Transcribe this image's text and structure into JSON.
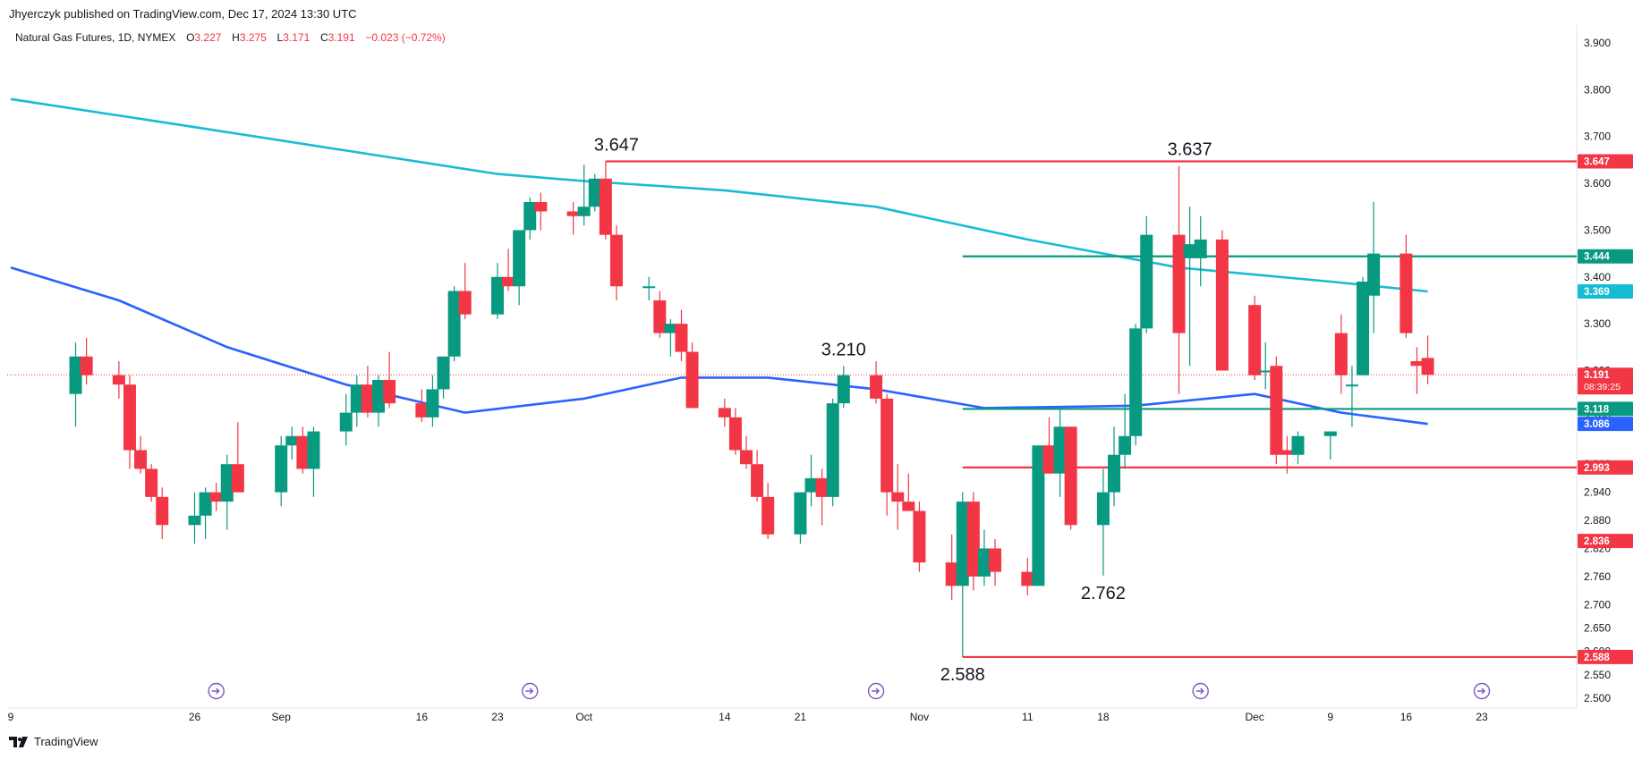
{
  "header": {
    "attribution": "Jhyerczyk published on TradingView.com, Dec 17, 2024 13:30 UTC",
    "symbol": "Natural Gas Futures, 1D, NYMEX",
    "ohlc": {
      "o_label": "O",
      "o_value": "3.227",
      "h_label": "H",
      "h_value": "3.275",
      "l_label": "L",
      "l_value": "3.171",
      "c_label": "C",
      "c_value": "3.191",
      "change": "−0.023 (−0.72%)"
    }
  },
  "footer": {
    "brand": "TradingView"
  },
  "colors": {
    "up": "#089981",
    "down": "#f23645",
    "ma_long": "#17bcd3",
    "ma_short": "#2962ff",
    "support": "#089981",
    "resistance": "#f23645",
    "price_line": "#f23645",
    "event_icon": "#7e57c2"
  },
  "chart_data": {
    "type": "candlestick",
    "instrument": "Natural Gas Futures",
    "timeframe": "1D",
    "exchange": "NYMEX",
    "y_axis": {
      "ylim": [
        2.5,
        3.9
      ],
      "ticks": [
        "3.900",
        "3.800",
        "3.700",
        "3.600",
        "3.500",
        "3.400",
        "3.300",
        "3.200",
        "3.100",
        "3.000",
        "2.940",
        "2.880",
        "2.820",
        "2.760",
        "2.700",
        "2.650",
        "2.600",
        "2.550",
        "2.500"
      ]
    },
    "x_axis": {
      "ticks": [
        {
          "label": "9",
          "date": "2024-08-09"
        },
        {
          "label": "26",
          "date": "2024-08-26"
        },
        {
          "label": "Sep",
          "date": "2024-09-03"
        },
        {
          "label": "16",
          "date": "2024-09-16"
        },
        {
          "label": "23",
          "date": "2024-09-23"
        },
        {
          "label": "Oct",
          "date": "2024-10-01"
        },
        {
          "label": "14",
          "date": "2024-10-14"
        },
        {
          "label": "21",
          "date": "2024-10-21"
        },
        {
          "label": "Nov",
          "date": "2024-11-01"
        },
        {
          "label": "11",
          "date": "2024-11-11"
        },
        {
          "label": "18",
          "date": "2024-11-18"
        },
        {
          "label": "Dec",
          "date": "2024-12-02"
        },
        {
          "label": "9",
          "date": "2024-12-09"
        },
        {
          "label": "16",
          "date": "2024-12-16"
        },
        {
          "label": "23",
          "date": "2024-12-23"
        }
      ]
    },
    "candles": [
      {
        "d": "2024-08-15",
        "o": 3.15,
        "h": 3.26,
        "l": 3.08,
        "c": 3.23
      },
      {
        "d": "2024-08-16",
        "o": 3.23,
        "h": 3.27,
        "l": 3.17,
        "c": 3.19
      },
      {
        "d": "2024-08-19",
        "o": 3.19,
        "h": 3.22,
        "l": 3.14,
        "c": 3.17
      },
      {
        "d": "2024-08-20",
        "o": 3.17,
        "h": 3.19,
        "l": 2.99,
        "c": 3.03
      },
      {
        "d": "2024-08-21",
        "o": 3.03,
        "h": 3.06,
        "l": 2.98,
        "c": 2.99
      },
      {
        "d": "2024-08-22",
        "o": 2.99,
        "h": 3.0,
        "l": 2.92,
        "c": 2.93
      },
      {
        "d": "2024-08-23",
        "o": 2.93,
        "h": 2.95,
        "l": 2.84,
        "c": 2.87
      },
      {
        "d": "2024-08-26",
        "o": 2.87,
        "h": 2.94,
        "l": 2.83,
        "c": 2.89
      },
      {
        "d": "2024-08-27",
        "o": 2.89,
        "h": 2.95,
        "l": 2.84,
        "c": 2.94
      },
      {
        "d": "2024-08-28",
        "o": 2.94,
        "h": 2.96,
        "l": 2.9,
        "c": 2.92
      },
      {
        "d": "2024-08-29",
        "o": 2.92,
        "h": 3.02,
        "l": 2.86,
        "c": 3.0
      },
      {
        "d": "2024-08-30",
        "o": 3.0,
        "h": 3.09,
        "l": 2.94,
        "c": 2.94
      },
      {
        "d": "2024-09-03",
        "o": 2.94,
        "h": 3.06,
        "l": 2.91,
        "c": 3.04
      },
      {
        "d": "2024-09-04",
        "o": 3.04,
        "h": 3.08,
        "l": 3.01,
        "c": 3.06
      },
      {
        "d": "2024-09-05",
        "o": 3.06,
        "h": 3.08,
        "l": 2.98,
        "c": 2.99
      },
      {
        "d": "2024-09-06",
        "o": 2.99,
        "h": 3.08,
        "l": 2.93,
        "c": 3.07
      },
      {
        "d": "2024-09-09",
        "o": 3.07,
        "h": 3.15,
        "l": 3.04,
        "c": 3.11
      },
      {
        "d": "2024-09-10",
        "o": 3.11,
        "h": 3.19,
        "l": 3.08,
        "c": 3.17
      },
      {
        "d": "2024-09-11",
        "o": 3.17,
        "h": 3.21,
        "l": 3.1,
        "c": 3.11
      },
      {
        "d": "2024-09-12",
        "o": 3.11,
        "h": 3.19,
        "l": 3.08,
        "c": 3.18
      },
      {
        "d": "2024-09-13",
        "o": 3.18,
        "h": 3.24,
        "l": 3.12,
        "c": 3.13
      },
      {
        "d": "2024-09-16",
        "o": 3.13,
        "h": 3.16,
        "l": 3.09,
        "c": 3.1
      },
      {
        "d": "2024-09-17",
        "o": 3.1,
        "h": 3.19,
        "l": 3.08,
        "c": 3.16
      },
      {
        "d": "2024-09-18",
        "o": 3.16,
        "h": 3.23,
        "l": 3.14,
        "c": 3.23
      },
      {
        "d": "2024-09-19",
        "o": 3.23,
        "h": 3.38,
        "l": 3.22,
        "c": 3.37
      },
      {
        "d": "2024-09-20",
        "o": 3.37,
        "h": 3.43,
        "l": 3.31,
        "c": 3.32
      },
      {
        "d": "2024-09-23",
        "o": 3.32,
        "h": 3.43,
        "l": 3.31,
        "c": 3.4
      },
      {
        "d": "2024-09-24",
        "o": 3.4,
        "h": 3.46,
        "l": 3.37,
        "c": 3.38
      },
      {
        "d": "2024-09-25",
        "o": 3.38,
        "h": 3.49,
        "l": 3.34,
        "c": 3.5
      },
      {
        "d": "2024-09-26",
        "o": 3.5,
        "h": 3.57,
        "l": 3.48,
        "c": 3.56
      },
      {
        "d": "2024-09-27",
        "o": 3.56,
        "h": 3.58,
        "l": 3.5,
        "c": 3.54
      },
      {
        "d": "2024-09-30",
        "o": 3.54,
        "h": 3.56,
        "l": 3.49,
        "c": 3.53
      },
      {
        "d": "2024-10-01",
        "o": 3.53,
        "h": 3.64,
        "l": 3.51,
        "c": 3.55
      },
      {
        "d": "2024-10-02",
        "o": 3.55,
        "h": 3.62,
        "l": 3.54,
        "c": 3.61
      },
      {
        "d": "2024-10-03",
        "o": 3.61,
        "h": 3.647,
        "l": 3.48,
        "c": 3.49
      },
      {
        "d": "2024-10-04",
        "o": 3.49,
        "h": 3.51,
        "l": 3.35,
        "c": 3.38
      },
      {
        "d": "2024-10-07",
        "o": 3.38,
        "h": 3.4,
        "l": 3.35,
        "c": 3.38
      },
      {
        "d": "2024-10-08",
        "o": 3.35,
        "h": 3.37,
        "l": 3.27,
        "c": 3.28
      },
      {
        "d": "2024-10-09",
        "o": 3.28,
        "h": 3.31,
        "l": 3.23,
        "c": 3.3
      },
      {
        "d": "2024-10-10",
        "o": 3.3,
        "h": 3.33,
        "l": 3.22,
        "c": 3.24
      },
      {
        "d": "2024-10-11",
        "o": 3.24,
        "h": 3.26,
        "l": 3.12,
        "c": 3.12
      },
      {
        "d": "2024-10-14",
        "o": 3.12,
        "h": 3.14,
        "l": 3.08,
        "c": 3.1
      },
      {
        "d": "2024-10-15",
        "o": 3.1,
        "h": 3.12,
        "l": 3.02,
        "c": 3.03
      },
      {
        "d": "2024-10-16",
        "o": 3.03,
        "h": 3.06,
        "l": 2.99,
        "c": 3.0
      },
      {
        "d": "2024-10-17",
        "o": 3.0,
        "h": 3.03,
        "l": 2.92,
        "c": 2.93
      },
      {
        "d": "2024-10-18",
        "o": 2.93,
        "h": 2.96,
        "l": 2.84,
        "c": 2.85
      },
      {
        "d": "2024-10-21",
        "o": 2.85,
        "h": 2.94,
        "l": 2.83,
        "c": 2.94
      },
      {
        "d": "2024-10-22",
        "o": 2.94,
        "h": 3.02,
        "l": 2.91,
        "c": 2.97
      },
      {
        "d": "2024-10-23",
        "o": 2.97,
        "h": 2.99,
        "l": 2.87,
        "c": 2.93
      },
      {
        "d": "2024-10-24",
        "o": 2.93,
        "h": 3.14,
        "l": 2.91,
        "c": 3.13
      },
      {
        "d": "2024-10-25",
        "o": 3.13,
        "h": 3.21,
        "l": 3.12,
        "c": 3.19
      },
      {
        "d": "2024-10-28",
        "o": 3.19,
        "h": 3.22,
        "l": 3.13,
        "c": 3.14
      },
      {
        "d": "2024-10-29",
        "o": 3.14,
        "h": 3.15,
        "l": 2.89,
        "c": 2.94
      },
      {
        "d": "2024-10-30",
        "o": 2.94,
        "h": 3.0,
        "l": 2.86,
        "c": 2.92
      },
      {
        "d": "2024-10-31",
        "o": 2.92,
        "h": 2.98,
        "l": 2.9,
        "c": 2.9
      },
      {
        "d": "2024-11-01",
        "o": 2.9,
        "h": 2.92,
        "l": 2.77,
        "c": 2.79
      },
      {
        "d": "2024-11-04",
        "o": 2.79,
        "h": 2.85,
        "l": 2.71,
        "c": 2.74
      },
      {
        "d": "2024-11-05",
        "o": 2.74,
        "h": 2.94,
        "l": 2.588,
        "c": 2.92
      },
      {
        "d": "2024-11-06",
        "o": 2.92,
        "h": 2.94,
        "l": 2.73,
        "c": 2.76
      },
      {
        "d": "2024-11-07",
        "o": 2.76,
        "h": 2.86,
        "l": 2.74,
        "c": 2.82
      },
      {
        "d": "2024-11-08",
        "o": 2.82,
        "h": 2.84,
        "l": 2.74,
        "c": 2.77
      },
      {
        "d": "2024-11-11",
        "o": 2.77,
        "h": 2.8,
        "l": 2.72,
        "c": 2.74
      },
      {
        "d": "2024-11-12",
        "o": 2.74,
        "h": 3.04,
        "l": 2.74,
        "c": 3.04
      },
      {
        "d": "2024-11-13",
        "o": 3.04,
        "h": 3.1,
        "l": 2.98,
        "c": 2.98
      },
      {
        "d": "2024-11-14",
        "o": 2.98,
        "h": 3.12,
        "l": 2.93,
        "c": 3.08
      },
      {
        "d": "2024-11-15",
        "o": 3.08,
        "h": 3.08,
        "l": 2.86,
        "c": 2.87
      },
      {
        "d": "2024-11-18",
        "o": 2.87,
        "h": 2.99,
        "l": 2.762,
        "c": 2.94
      },
      {
        "d": "2024-11-19",
        "o": 2.94,
        "h": 3.08,
        "l": 2.91,
        "c": 3.02
      },
      {
        "d": "2024-11-20",
        "o": 3.02,
        "h": 3.15,
        "l": 2.99,
        "c": 3.06
      },
      {
        "d": "2024-11-21",
        "o": 3.06,
        "h": 3.3,
        "l": 3.04,
        "c": 3.29
      },
      {
        "d": "2024-11-22",
        "o": 3.29,
        "h": 3.53,
        "l": 3.28,
        "c": 3.49
      },
      {
        "d": "2024-11-25",
        "o": 3.49,
        "h": 3.637,
        "l": 3.15,
        "c": 3.28
      },
      {
        "d": "2024-11-26",
        "o": 3.44,
        "h": 3.55,
        "l": 3.21,
        "c": 3.47
      },
      {
        "d": "2024-11-27",
        "o": 3.44,
        "h": 3.53,
        "l": 3.38,
        "c": 3.48
      },
      {
        "d": "2024-11-29",
        "o": 3.48,
        "h": 3.5,
        "l": 3.2,
        "c": 3.2
      },
      {
        "d": "2024-12-02",
        "o": 3.34,
        "h": 3.36,
        "l": 3.18,
        "c": 3.19
      },
      {
        "d": "2024-12-03",
        "o": 3.2,
        "h": 3.26,
        "l": 3.16,
        "c": 3.2
      },
      {
        "d": "2024-12-04",
        "o": 3.21,
        "h": 3.23,
        "l": 3.0,
        "c": 3.02
      },
      {
        "d": "2024-12-05",
        "o": 3.03,
        "h": 3.06,
        "l": 2.98,
        "c": 3.02
      },
      {
        "d": "2024-12-06",
        "o": 3.02,
        "h": 3.07,
        "l": 3.0,
        "c": 3.06
      },
      {
        "d": "2024-12-09",
        "o": 3.06,
        "h": 3.07,
        "l": 3.01,
        "c": 3.07
      },
      {
        "d": "2024-12-10",
        "o": 3.28,
        "h": 3.32,
        "l": 3.15,
        "c": 3.19
      },
      {
        "d": "2024-12-11",
        "o": 3.17,
        "h": 3.21,
        "l": 3.08,
        "c": 3.17
      },
      {
        "d": "2024-12-12",
        "o": 3.19,
        "h": 3.4,
        "l": 3.19,
        "c": 3.39
      },
      {
        "d": "2024-12-13",
        "o": 3.36,
        "h": 3.56,
        "l": 3.28,
        "c": 3.45
      },
      {
        "d": "2024-12-16",
        "o": 3.45,
        "h": 3.49,
        "l": 3.27,
        "c": 3.28
      },
      {
        "d": "2024-12-17",
        "o": 3.22,
        "h": 3.25,
        "l": 3.15,
        "c": 3.21
      },
      {
        "d": "2024-12-18",
        "o": 3.227,
        "h": 3.275,
        "l": 3.171,
        "c": 3.191
      }
    ],
    "moving_averages": [
      {
        "color_key": "ma_long",
        "points": [
          {
            "d": "2024-08-09",
            "v": 3.78
          },
          {
            "d": "2024-08-26",
            "v": 3.72
          },
          {
            "d": "2024-09-09",
            "v": 3.67
          },
          {
            "d": "2024-09-23",
            "v": 3.62
          },
          {
            "d": "2024-10-01",
            "v": 3.605
          },
          {
            "d": "2024-10-14",
            "v": 3.585
          },
          {
            "d": "2024-10-28",
            "v": 3.55
          },
          {
            "d": "2024-11-11",
            "v": 3.48
          },
          {
            "d": "2024-11-25",
            "v": 3.42
          },
          {
            "d": "2024-12-09",
            "v": 3.39
          },
          {
            "d": "2024-12-18",
            "v": 3.369
          }
        ]
      },
      {
        "color_key": "ma_short",
        "points": [
          {
            "d": "2024-08-09",
            "v": 3.42
          },
          {
            "d": "2024-08-19",
            "v": 3.35
          },
          {
            "d": "2024-08-29",
            "v": 3.25
          },
          {
            "d": "2024-09-09",
            "v": 3.17
          },
          {
            "d": "2024-09-20",
            "v": 3.11
          },
          {
            "d": "2024-10-01",
            "v": 3.14
          },
          {
            "d": "2024-10-10",
            "v": 3.185
          },
          {
            "d": "2024-10-18",
            "v": 3.185
          },
          {
            "d": "2024-10-28",
            "v": 3.16
          },
          {
            "d": "2024-11-07",
            "v": 3.12
          },
          {
            "d": "2024-11-21",
            "v": 3.125
          },
          {
            "d": "2024-12-02",
            "v": 3.15
          },
          {
            "d": "2024-12-10",
            "v": 3.11
          },
          {
            "d": "2024-12-18",
            "v": 3.086
          }
        ]
      }
    ],
    "horizontal_levels": [
      {
        "value": 3.647,
        "color_key": "resistance",
        "from": "2024-10-03",
        "label": "3.647"
      },
      {
        "value": 3.444,
        "color_key": "support",
        "from": "2024-11-05",
        "label": "3.444"
      },
      {
        "value": 3.118,
        "color_key": "support",
        "from": "2024-11-05",
        "label": "3.118"
      },
      {
        "value": 2.993,
        "color_key": "resistance",
        "from": "2024-11-05",
        "label": "2.993"
      },
      {
        "value": 2.588,
        "color_key": "resistance",
        "from": "2024-11-05",
        "label": "2.588"
      }
    ],
    "axis_tags": [
      {
        "value": 3.647,
        "text": "3.647",
        "color_key": "resistance"
      },
      {
        "value": 3.444,
        "text": "3.444",
        "color_key": "support"
      },
      {
        "value": 3.369,
        "text": "3.369",
        "color_key": "ma_long"
      },
      {
        "value": 3.191,
        "text": "3.191",
        "sub": "08:39:25",
        "color_key": "price_line"
      },
      {
        "value": 3.118,
        "text": "3.118",
        "color_key": "support"
      },
      {
        "value": 3.086,
        "text": "3.086",
        "color_key": "ma_short"
      },
      {
        "value": 2.993,
        "text": "2.993",
        "color_key": "resistance"
      },
      {
        "value": 2.836,
        "text": "2.836",
        "color_key": "resistance"
      },
      {
        "value": 2.588,
        "text": "2.588",
        "color_key": "resistance"
      }
    ],
    "last_price": 3.191,
    "annotations": [
      {
        "text": "3.647",
        "d": "2024-10-04",
        "v": 3.647,
        "pos": "above"
      },
      {
        "text": "3.637",
        "d": "2024-11-26",
        "v": 3.637,
        "pos": "above"
      },
      {
        "text": "3.210",
        "d": "2024-10-25",
        "v": 3.21,
        "pos": "above"
      },
      {
        "text": "2.762",
        "d": "2024-11-18",
        "v": 2.762,
        "pos": "below"
      },
      {
        "text": "2.588",
        "d": "2024-11-05",
        "v": 2.588,
        "pos": "below"
      }
    ],
    "event_markers": [
      "2024-08-28",
      "2024-09-26",
      "2024-10-28",
      "2024-11-27",
      "2024-12-23"
    ]
  }
}
